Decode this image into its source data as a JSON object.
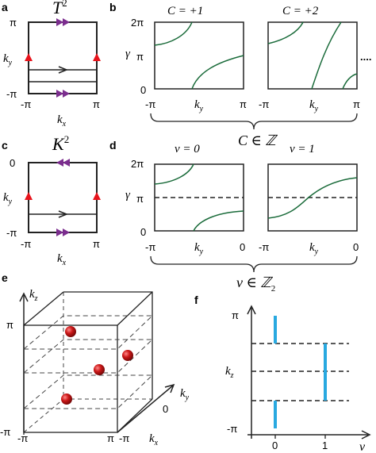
{
  "panels": {
    "a": {
      "label": "a",
      "title": "T",
      "title_sup": "2",
      "y_ticks": [
        "π",
        "-π"
      ],
      "x_ticks": [
        "-π",
        "π"
      ],
      "y_axis": "k",
      "y_axis_sub": "y",
      "x_axis": "k",
      "x_axis_sub": "x"
    },
    "b": {
      "label": "b",
      "subplot_titles": [
        "C = +1",
        "C = +2"
      ],
      "y_ticks": [
        "2π",
        "π",
        "0"
      ],
      "x_ticks": [
        "-π",
        "π"
      ],
      "x_axis": "k",
      "x_axis_sub": "y",
      "y_axis": "γ",
      "ellipsis": "....",
      "bracket_label": "C ∈ ℤ"
    },
    "c": {
      "label": "c",
      "title": "K",
      "title_sup": "2",
      "y_ticks": [
        "0",
        "-π"
      ],
      "x_ticks": [
        "-π",
        "π"
      ],
      "y_axis": "k",
      "y_axis_sub": "y",
      "x_axis": "k",
      "x_axis_sub": "x"
    },
    "d": {
      "label": "d",
      "subplot_titles": [
        "ν = 0",
        "ν = 1"
      ],
      "y_ticks": [
        "2π",
        "π",
        "0"
      ],
      "x_ticks": [
        "-π",
        "0"
      ],
      "x_axis": "k",
      "x_axis_sub": "y",
      "y_axis": "γ",
      "bracket_label": "ν ∈ ℤ",
      "bracket_label_sub": "2"
    },
    "e": {
      "label": "e",
      "z_axis": "k",
      "z_axis_sub": "z",
      "y_axis": "k",
      "y_axis_sub": "y",
      "x_axis": "k",
      "x_axis_sub": "x",
      "z_ticks": [
        "π",
        "-π"
      ],
      "x_ticks": [
        "-π",
        "π"
      ],
      "y_ticks": [
        "0",
        "-π"
      ]
    },
    "f": {
      "label": "f",
      "y_ticks": [
        "π",
        "-π"
      ],
      "x_ticks": [
        "0",
        "1"
      ],
      "y_axis": "k",
      "y_axis_sub": "z",
      "x_axis": "ν"
    }
  },
  "colors": {
    "curve": "#1a6b3a",
    "arrow_purple": "#7b2d8e",
    "triangle_red": "#e8141c",
    "sphere_red": "#cc1818",
    "bar_blue": "#29a9e0",
    "line": "#222222"
  }
}
